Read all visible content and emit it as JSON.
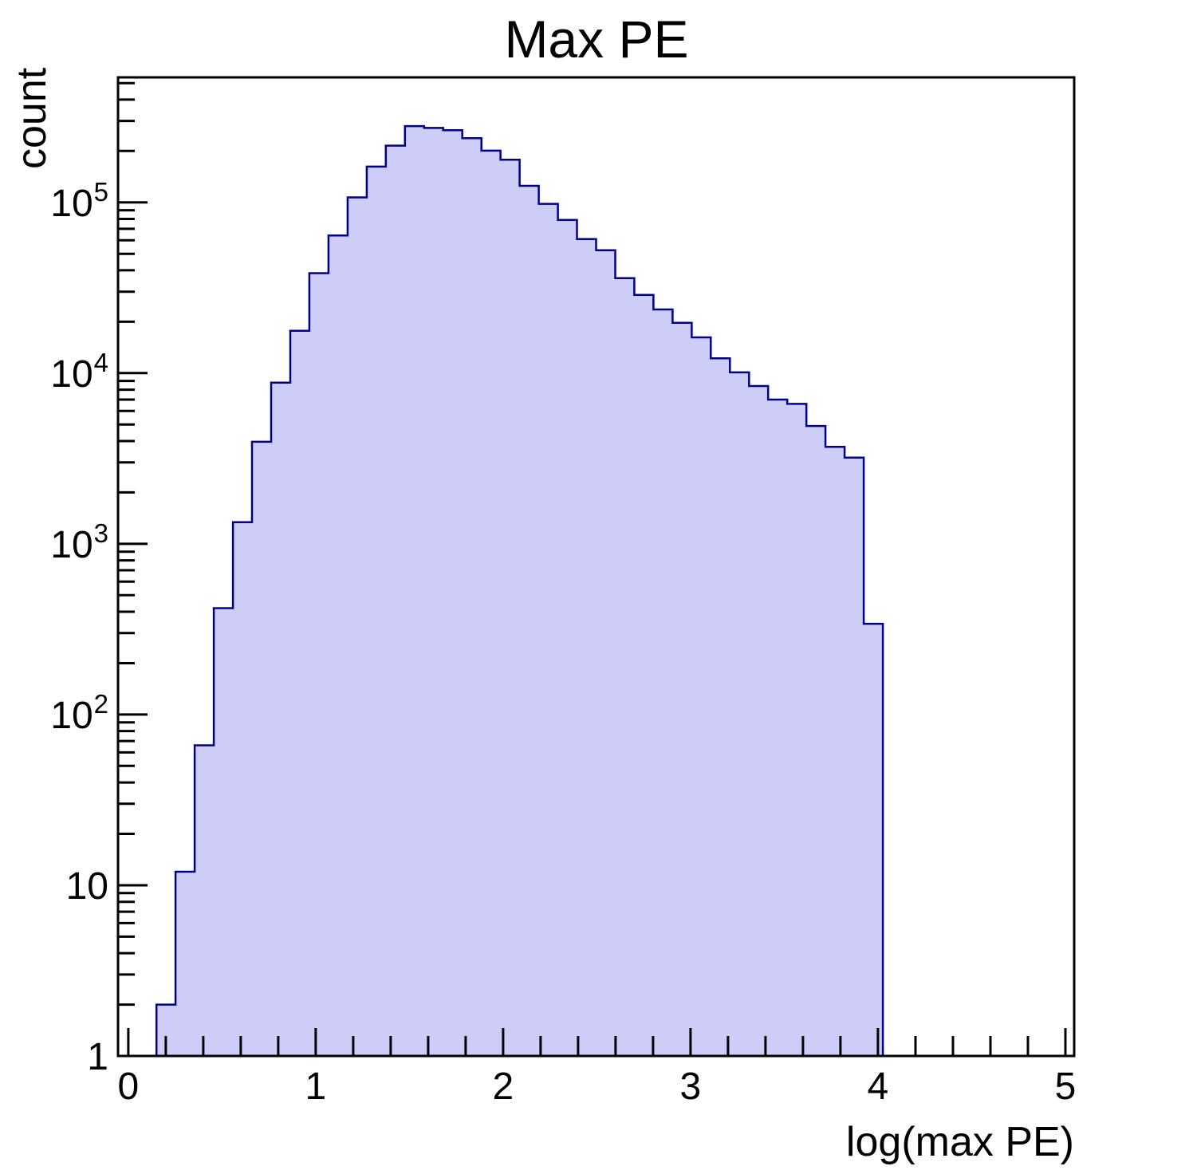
{
  "figure": {
    "background": "#ffffff"
  },
  "chart_data": {
    "type": "bar",
    "subtype": "histogram-step-filled",
    "title": "Max PE",
    "xlabel": "log(max PE)",
    "ylabel": "count",
    "x_scale": "linear",
    "y_scale": "log",
    "xlim": [
      -0.055,
      5.047
    ],
    "ylim": [
      1,
      540000
    ],
    "grid": false,
    "legend": null,
    "x_major_ticks": [
      0,
      1,
      2,
      3,
      4,
      5
    ],
    "x_tick_labels": [
      "0",
      "1",
      "2",
      "3",
      "4",
      "5"
    ],
    "x_minor_step": 0.2,
    "y_major_ticks": [
      1,
      10,
      100,
      1000,
      10000,
      100000
    ],
    "y_tick_labels": [
      {
        "text": "1"
      },
      {
        "text": "10"
      },
      {
        "base": "10",
        "exp": "2"
      },
      {
        "base": "10",
        "exp": "3"
      },
      {
        "base": "10",
        "exp": "4"
      },
      {
        "base": "10",
        "exp": "5"
      }
    ],
    "bins": {
      "start": 0.15,
      "width": 0.102,
      "count": 38
    },
    "counts": [
      2,
      12,
      66,
      420,
      1340,
      3960,
      8800,
      17700,
      38500,
      64000,
      107000,
      162000,
      215000,
      280000,
      273000,
      265000,
      238000,
      201000,
      178000,
      125000,
      98000,
      79000,
      61000,
      52500,
      36000,
      28700,
      23600,
      19700,
      16200,
      12200,
      10100,
      8400,
      7000,
      6600,
      4900,
      3700,
      3200,
      340
    ],
    "fill_color": "#cdcdf8",
    "edge_color": "#00008b",
    "axis_color": "#000000"
  }
}
